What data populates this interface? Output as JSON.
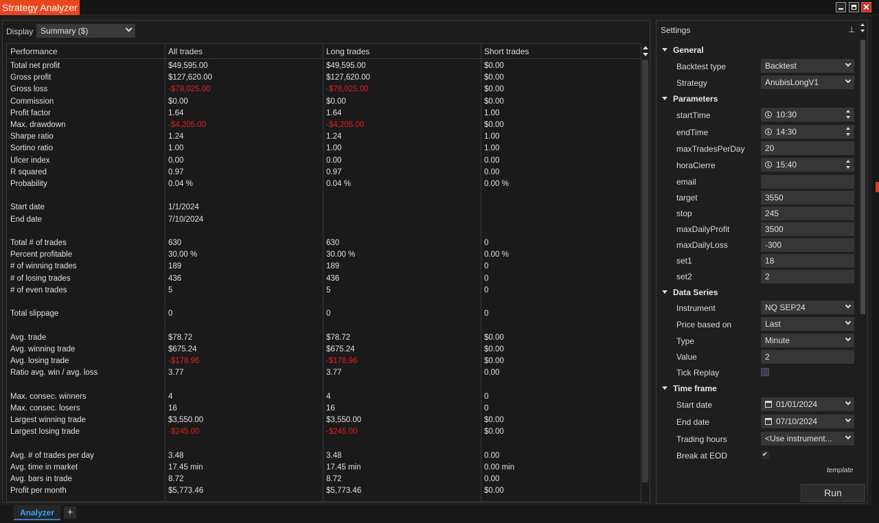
{
  "window": {
    "title": "Strategy Analyzer"
  },
  "display": {
    "label": "Display",
    "selected": "Summary ($)"
  },
  "table": {
    "headers": [
      "Performance",
      "All trades",
      "Long trades",
      "Short trades"
    ],
    "rows": [
      {
        "label": "Total net profit",
        "all": "$49,595.00",
        "long": "$49,595.00",
        "short": "$0.00"
      },
      {
        "label": "Gross profit",
        "all": "$127,620.00",
        "long": "$127,620.00",
        "short": "$0.00"
      },
      {
        "label": "Gross loss",
        "all": "-$78,025.00",
        "long": "-$78,025.00",
        "short": "$0.00"
      },
      {
        "label": "Commission",
        "all": "$0.00",
        "long": "$0.00",
        "short": "$0.00"
      },
      {
        "label": "Profit factor",
        "all": "1.64",
        "long": "1.64",
        "short": "1.00"
      },
      {
        "label": "Max. drawdown",
        "all": "-$4,205.00",
        "long": "-$4,205.00",
        "short": "$0.00"
      },
      {
        "label": "Sharpe ratio",
        "all": "1.24",
        "long": "1.24",
        "short": "1.00"
      },
      {
        "label": "Sortino ratio",
        "all": "1.00",
        "long": "1.00",
        "short": "1.00"
      },
      {
        "label": "Ulcer index",
        "all": "0.00",
        "long": "0.00",
        "short": "0.00"
      },
      {
        "label": "R squared",
        "all": "0.97",
        "long": "0.97",
        "short": "0.00"
      },
      {
        "label": "Probability",
        "all": "0.04 %",
        "long": "0.04 %",
        "short": "0.00 %"
      },
      {
        "label": "",
        "all": "",
        "long": "",
        "short": ""
      },
      {
        "label": "Start date",
        "all": "1/1/2024",
        "long": "",
        "short": ""
      },
      {
        "label": "End date",
        "all": "7/10/2024",
        "long": "",
        "short": ""
      },
      {
        "label": "",
        "all": "",
        "long": "",
        "short": ""
      },
      {
        "label": "Total # of trades",
        "all": "630",
        "long": "630",
        "short": "0"
      },
      {
        "label": "Percent profitable",
        "all": "30.00 %",
        "long": "30.00 %",
        "short": "0.00 %"
      },
      {
        "label": "# of winning trades",
        "all": "189",
        "long": "189",
        "short": "0"
      },
      {
        "label": "# of losing trades",
        "all": "436",
        "long": "436",
        "short": "0"
      },
      {
        "label": "# of even trades",
        "all": "5",
        "long": "5",
        "short": "0"
      },
      {
        "label": "",
        "all": "",
        "long": "",
        "short": ""
      },
      {
        "label": "Total slippage",
        "all": "0",
        "long": "0",
        "short": "0"
      },
      {
        "label": "",
        "all": "",
        "long": "",
        "short": ""
      },
      {
        "label": "Avg. trade",
        "all": "$78.72",
        "long": "$78.72",
        "short": "$0.00"
      },
      {
        "label": "Avg. winning trade",
        "all": "$675.24",
        "long": "$675.24",
        "short": "$0.00"
      },
      {
        "label": "Avg. losing trade",
        "all": "-$178.96",
        "long": "-$178.96",
        "short": "$0.00"
      },
      {
        "label": "Ratio avg. win / avg. loss",
        "all": "3.77",
        "long": "3.77",
        "short": "0.00"
      },
      {
        "label": "",
        "all": "",
        "long": "",
        "short": ""
      },
      {
        "label": "Max. consec. winners",
        "all": "4",
        "long": "4",
        "short": "0"
      },
      {
        "label": "Max. consec. losers",
        "all": "16",
        "long": "16",
        "short": "0"
      },
      {
        "label": "Largest winning trade",
        "all": "$3,550.00",
        "long": "$3,550.00",
        "short": "$0.00"
      },
      {
        "label": "Largest losing trade",
        "all": "-$245.00",
        "long": "-$245.00",
        "short": "$0.00"
      },
      {
        "label": "",
        "all": "",
        "long": "",
        "short": ""
      },
      {
        "label": "Avg. # of trades per day",
        "all": "3.48",
        "long": "3.48",
        "short": "0.00"
      },
      {
        "label": "Avg. time in market",
        "all": "17.45 min",
        "long": "17.45 min",
        "short": "0.00 min"
      },
      {
        "label": "Avg. bars in trade",
        "all": "8.72",
        "long": "8.72",
        "short": "0.00"
      },
      {
        "label": "Profit per month",
        "all": "$5,773.46",
        "long": "$5,773.46",
        "short": "$0.00"
      }
    ]
  },
  "settings": {
    "title": "Settings",
    "template_label": "template",
    "run_label": "Run",
    "sections": {
      "general": "General",
      "parameters": "Parameters",
      "data_series": "Data Series",
      "time_frame": "Time frame"
    },
    "general": {
      "backtest_type_label": "Backtest type",
      "backtest_type": "Backtest",
      "strategy_label": "Strategy",
      "strategy": "AnubisLongV1"
    },
    "parameters": {
      "startTime_label": "startTime",
      "startTime": "10:30",
      "endTime_label": "endTime",
      "endTime": "14:30",
      "maxTradesPerDay_label": "maxTradesPerDay",
      "maxTradesPerDay": "20",
      "horaCierre_label": "horaCierre",
      "horaCierre": "15:40",
      "email_label": "email",
      "email": "",
      "target_label": "target",
      "target": "3550",
      "stop_label": "stop",
      "stop": "245",
      "maxDailyProfit_label": "maxDailyProfit",
      "maxDailyProfit": "3500",
      "maxDailyLoss_label": "maxDailyLoss",
      "maxDailyLoss": "-300",
      "set1_label": "set1",
      "set1": "18",
      "set2_label": "set2",
      "set2": "2"
    },
    "data_series": {
      "instrument_label": "Instrument",
      "instrument": "NQ SEP24",
      "price_based_on_label": "Price based on",
      "price_based_on": "Last",
      "type_label": "Type",
      "type": "Minute",
      "value_label": "Value",
      "value": "2",
      "tick_replay_label": "Tick Replay",
      "tick_replay": false
    },
    "time_frame": {
      "start_date_label": "Start date",
      "start_date": "01/01/2024",
      "end_date_label": "End date",
      "end_date": "07/10/2024",
      "trading_hours_label": "Trading hours",
      "trading_hours": "<Use instrument...",
      "break_at_eod_label": "Break at EOD",
      "break_at_eod": true
    }
  },
  "bottom_tabs": {
    "active": "Analyzer",
    "add": "+"
  },
  "colors": {
    "accent": "#e8471e",
    "negative": "#e02020",
    "tab_active": "#3fa0ff"
  }
}
